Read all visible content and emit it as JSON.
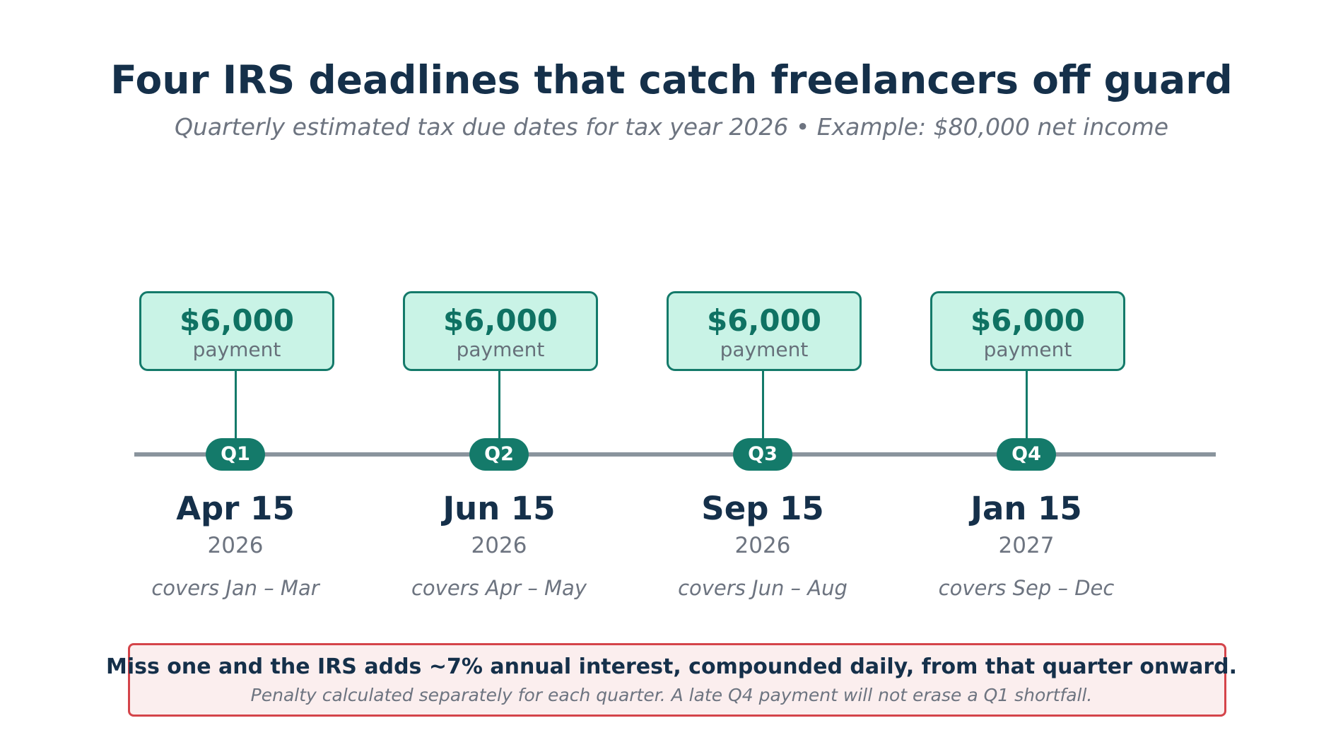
{
  "title": "Four IRS deadlines that catch freelancers off guard",
  "subtitle": "Quarterly estimated tax due dates for tax year 2026  •  Example: $80,000 net income",
  "milestones": [
    {
      "quarter": "Q1",
      "amount": "$6,000",
      "amount_label": "payment",
      "date": "Apr 15",
      "year": "2026",
      "covers": "covers Jan – Mar"
    },
    {
      "quarter": "Q2",
      "amount": "$6,000",
      "amount_label": "payment",
      "date": "Jun 15",
      "year": "2026",
      "covers": "covers Apr – May"
    },
    {
      "quarter": "Q3",
      "amount": "$6,000",
      "amount_label": "payment",
      "date": "Sep 15",
      "year": "2026",
      "covers": "covers Jun – Aug"
    },
    {
      "quarter": "Q4",
      "amount": "$6,000",
      "amount_label": "payment",
      "date": "Jan 15",
      "year": "2027",
      "covers": "covers Sep – Dec"
    }
  ],
  "warning": {
    "headline": "Miss one and the IRS adds ~7% annual interest, compounded daily, from that quarter onward.",
    "note": "Penalty calculated separately for each quarter. A late Q4 payment will not erase a Q1 shortfall."
  },
  "colors": {
    "title": "#15304a",
    "accent": "#147a6a",
    "payment_fill": "#c9f3e6",
    "timeline": "#8a949d",
    "warning_border": "#d4444a",
    "warning_fill": "#fbeeee"
  }
}
